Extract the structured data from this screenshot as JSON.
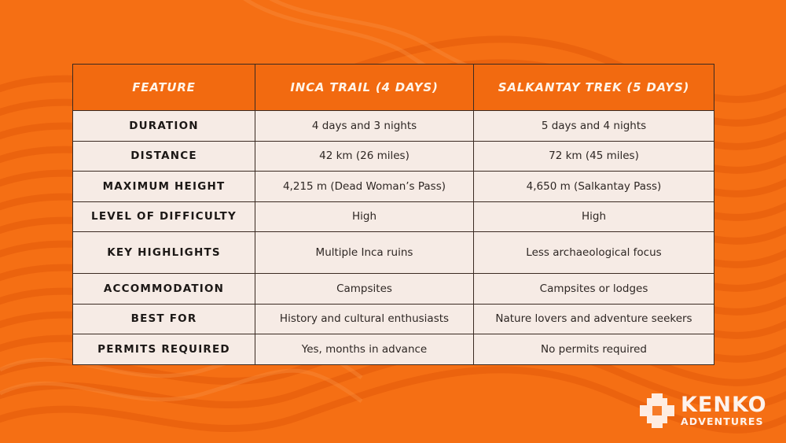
{
  "table": {
    "headers": [
      "FEATURE",
      "INCA TRAIL (4 DAYS)",
      "SALKANTAY TREK (5 DAYS)"
    ],
    "rows": [
      [
        "DURATION",
        "4 days and 3 nights",
        "5 days and 4 nights"
      ],
      [
        "DISTANCE",
        "42 km (26 miles)",
        "72 km (45 miles)"
      ],
      [
        "MAXIMUM HEIGHT",
        "4,215 m (Dead Woman’s Pass)",
        "4,650 m (Salkantay Pass)"
      ],
      [
        "LEVEL OF DIFFICULTY",
        "High",
        "High"
      ],
      [
        "KEY HIGHLIGHTS",
        "Multiple Inca ruins",
        "Less archaeological focus"
      ],
      [
        "ACCOMMODATION",
        "Campsites",
        "Campsites or lodges"
      ],
      [
        "BEST FOR",
        "History and cultural enthusiasts",
        "Nature lovers and adventure seekers"
      ],
      [
        "PERMITS REQUIRED",
        "Yes, months in advance",
        "No permits required"
      ]
    ]
  },
  "logo": {
    "name": "KENKO",
    "subtitle": "ADVENTURES",
    "icon": "chakana-cross-icon"
  },
  "colors": {
    "background": "#f56f14",
    "header_cell": "#f26a10",
    "body_cell": "#f6ebe5",
    "border": "#3a2a22"
  }
}
